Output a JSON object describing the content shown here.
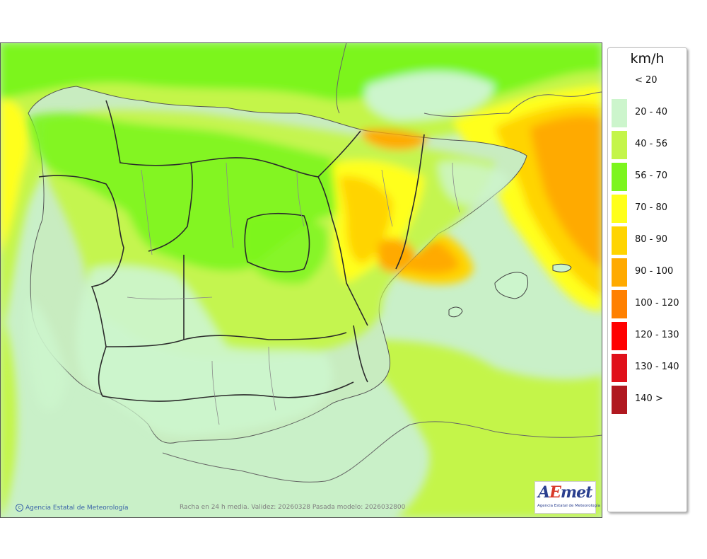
{
  "map": {
    "caption": "Racha en 24 h media. Validez: 20260328 Pasada modelo: 2026032800",
    "copyright": "Agencia Estatal de Meteorología",
    "colors": {
      "sea_base": "#c9f0c8",
      "land_base": "#c8ecc0",
      "border": "#2b2b2b",
      "province_border": "#8a8a8a"
    }
  },
  "legend": {
    "unit": "km/h",
    "items": [
      {
        "label": "< 20",
        "color": "#ffffff"
      },
      {
        "label": "20 - 40",
        "color": "#ccf5cc"
      },
      {
        "label": "40 - 56",
        "color": "#c4f54a"
      },
      {
        "label": "56 - 70",
        "color": "#7cf51e"
      },
      {
        "label": "70 - 80",
        "color": "#ffff1a"
      },
      {
        "label": "80 - 90",
        "color": "#ffd400"
      },
      {
        "label": "90 - 100",
        "color": "#ffaa00"
      },
      {
        "label": "100 - 120",
        "color": "#ff8000"
      },
      {
        "label": "120 - 130",
        "color": "#ff0000"
      },
      {
        "label": "130 - 140",
        "color": "#e0101a"
      },
      {
        "label": "140 >",
        "color": "#b01820"
      }
    ]
  },
  "logo": {
    "mark_a": "A",
    "mark_e": "E",
    "mark_rest": "met",
    "text": "Agencia Estatal de Meteorología"
  }
}
